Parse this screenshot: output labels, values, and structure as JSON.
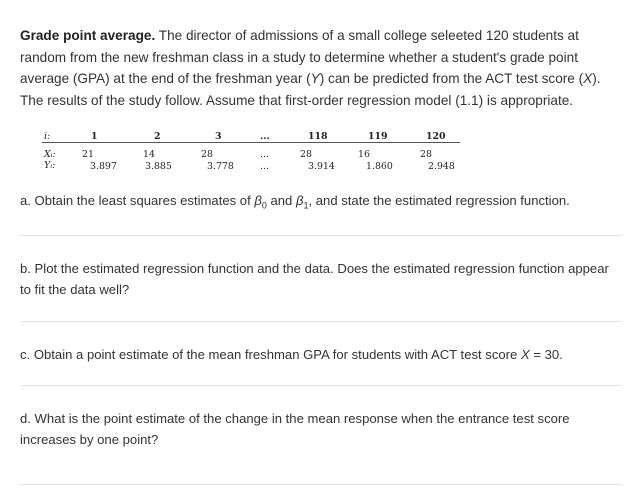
{
  "problem": {
    "title": "Grade point average.",
    "text_1": " The director of admissions of a small college seleeted 120 students at random from the new freshman class in a study to determine whether a student's grade point average (GPA) at the end of the freshman year (",
    "y_var": "Y",
    "text_2": ") can be predicted from the ACT test score (",
    "x_var": "X",
    "text_3": "). The results of the study follow. Assume that first-order regression model (1.1) is appropriate."
  },
  "table": {
    "row_labels": [
      "i:",
      "Xᵢ:",
      "Yᵢ:"
    ],
    "columns": [
      {
        "i": "1",
        "x": "21",
        "y": "3.897"
      },
      {
        "i": "2",
        "x": "14",
        "y": "3.885"
      },
      {
        "i": "3",
        "x": "28",
        "y": "3.778"
      },
      {
        "i": "...",
        "x": "...",
        "y": "..."
      },
      {
        "i": "118",
        "x": "28",
        "y": "3.914"
      },
      {
        "i": "119",
        "x": "16",
        "y": "1.860"
      },
      {
        "i": "120",
        "x": "28",
        "y": "2.948"
      }
    ]
  },
  "parts": {
    "a": {
      "text_1": "a. Obtain the least squares estimates of ",
      "beta": "β",
      "sub_0": "0",
      "and": " and ",
      "sub_1": "1",
      "text_2": ", and state the estimated regression function."
    },
    "b": {
      "text": "b. Plot the estimated regression function and the data. Does the estimated regression function appear to fit the data well?"
    },
    "c": {
      "text_1": "c. Obtain a point estimate of the mean freshman GPA for students with ACT test score ",
      "x_var": "X",
      "text_2": " = 30."
    },
    "d": {
      "text": "d. What is the point estimate of the change in the mean response when the entrance test score increases by one point?"
    }
  },
  "colors": {
    "text": "#333333",
    "divider": "#e2e2e2"
  }
}
